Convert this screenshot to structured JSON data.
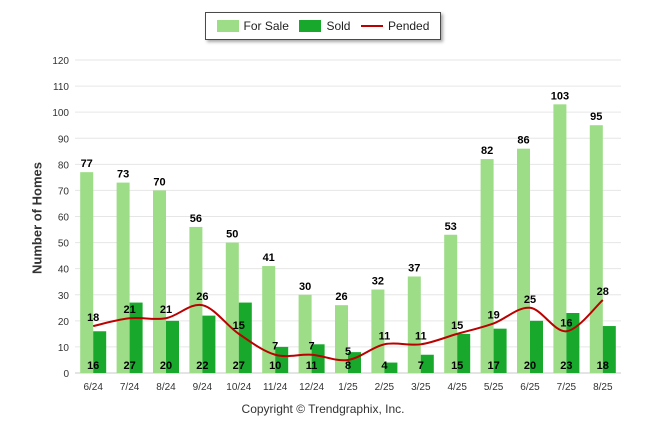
{
  "legend": {
    "for_sale": "For Sale",
    "sold": "Sold",
    "pended": "Pended"
  },
  "copyright": "Copyright © Trendgraphix, Inc.",
  "colors": {
    "for_sale": "#9ddd87",
    "sold": "#17a82c",
    "pended": "#bb0000",
    "grid": "#e6e6e6"
  },
  "chart_data": {
    "type": "bar",
    "categories": [
      "6/24",
      "7/24",
      "8/24",
      "9/24",
      "10/24",
      "11/24",
      "12/24",
      "1/25",
      "2/25",
      "3/25",
      "4/25",
      "5/25",
      "6/25",
      "7/25",
      "8/25"
    ],
    "series": [
      {
        "name": "For Sale",
        "type": "bar",
        "values": [
          77,
          73,
          70,
          56,
          50,
          41,
          30,
          26,
          32,
          37,
          53,
          82,
          86,
          103,
          95
        ]
      },
      {
        "name": "Sold",
        "type": "bar",
        "values": [
          16,
          27,
          20,
          22,
          27,
          10,
          11,
          8,
          4,
          7,
          15,
          17,
          20,
          23,
          18
        ]
      },
      {
        "name": "Pended",
        "type": "line",
        "values": [
          18,
          21,
          21,
          26,
          15,
          7,
          7,
          5,
          11,
          11,
          15,
          19,
          25,
          16,
          28
        ]
      }
    ],
    "ylabel": "Number of Homes",
    "xlabel": "",
    "ylim": [
      0,
      120
    ],
    "yticks": [
      0,
      10,
      20,
      30,
      40,
      50,
      60,
      70,
      80,
      90,
      100,
      110,
      120
    ],
    "grid": true,
    "legend_position": "top-center"
  }
}
